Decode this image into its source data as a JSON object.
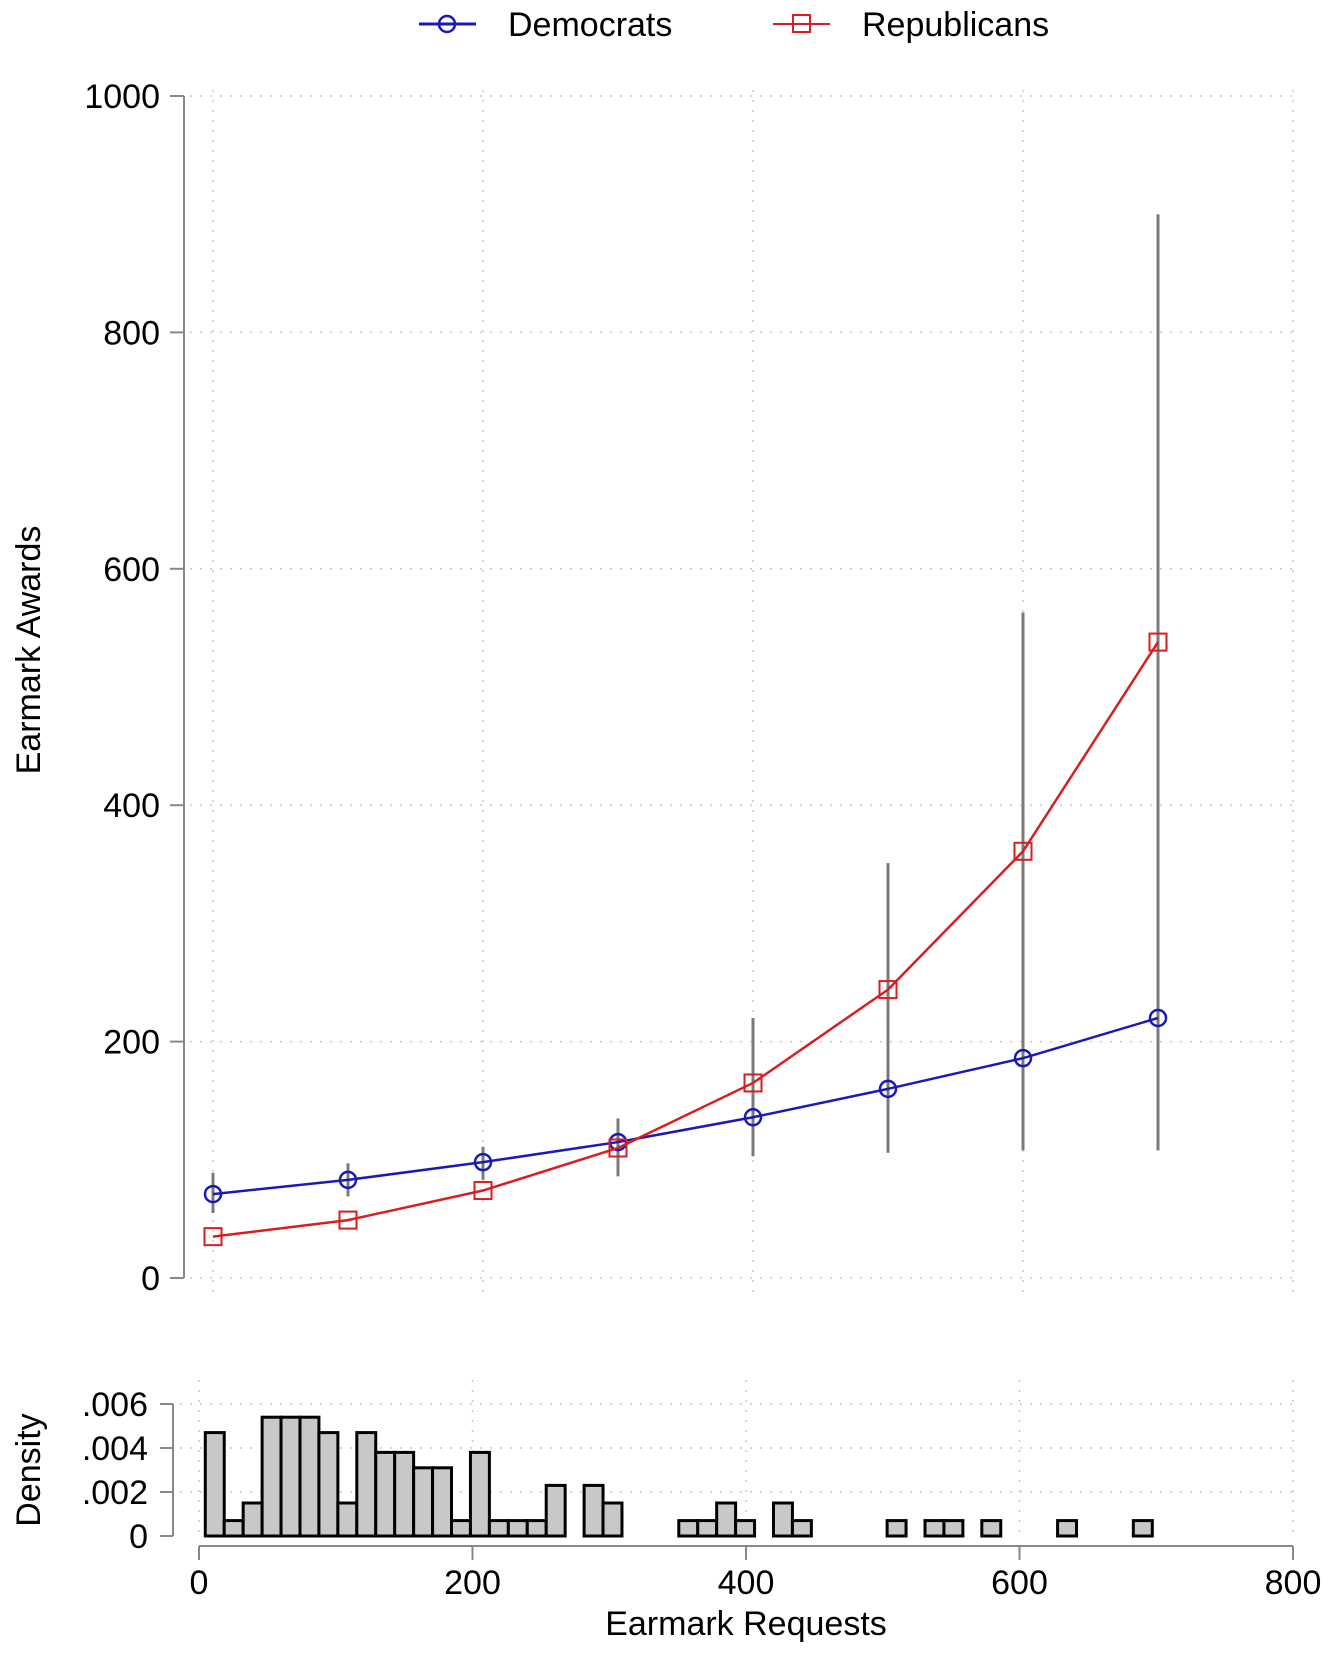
{
  "legend": {
    "items": [
      {
        "label": "Democrats",
        "color": "#1a1ab8",
        "marker": "circle"
      },
      {
        "label": "Republicans",
        "color": "#d81e1e",
        "marker": "square"
      }
    ]
  },
  "colors": {
    "democrats": "#1a1ab8",
    "republicans": "#d81e1e",
    "ci": "#7a7a7a",
    "ci_dark": "#444444",
    "hist_fill": "#c8c8c8",
    "hist_edge": "#000000",
    "grid": "#c8c8c8",
    "axis": "#888888"
  },
  "chart_data": [
    {
      "type": "line",
      "title": "",
      "xlabel": "Earmark Requests",
      "ylabel": "Earmark Awards",
      "xlim": [
        0,
        800
      ],
      "ylim": [
        0,
        1000
      ],
      "x_ticks": [
        0,
        200,
        400,
        600,
        800
      ],
      "y_ticks": [
        0,
        200,
        400,
        600,
        800,
        1000
      ],
      "y_tick_labels": [
        "0",
        "200",
        "400",
        "600",
        "800",
        "1000"
      ],
      "grid": true,
      "legend_position": "top",
      "x": [
        0,
        100,
        200,
        300,
        400,
        500,
        600,
        700
      ],
      "series": [
        {
          "name": "Democrats",
          "marker": "circle",
          "color": "#1a1ab8",
          "values": [
            71,
            83,
            98,
            115,
            136,
            160,
            186,
            220
          ]
        },
        {
          "name": "Republicans",
          "marker": "square",
          "color": "#d81e1e",
          "values": [
            35,
            49,
            74,
            110,
            165,
            244,
            361,
            538
          ]
        }
      ],
      "confidence_intervals": {
        "x": [
          0,
          100,
          200,
          300,
          400,
          500,
          600,
          700
        ],
        "lower": [
          55,
          69,
          83,
          86,
          103,
          106,
          108,
          108
        ],
        "upper": [
          89,
          97,
          111,
          135,
          220,
          351,
          563,
          900
        ]
      }
    },
    {
      "type": "bar",
      "title": "",
      "xlabel": "Earmark Requests",
      "ylabel": "Density",
      "xlim": [
        0,
        800
      ],
      "ylim": [
        0,
        0.006
      ],
      "x_ticks": [
        0,
        200,
        400,
        600,
        800
      ],
      "x_tick_labels": [
        "0",
        "200",
        "400",
        "600",
        "800"
      ],
      "y_ticks": [
        0,
        0.002,
        0.004,
        0.006
      ],
      "y_tick_labels": [
        "0",
        ".002",
        ".004",
        ".006"
      ],
      "grid": true,
      "bin_start": 4.6,
      "bin_width": 13.85,
      "bins": [
        {
          "left": 4.6,
          "density": 0.0047
        },
        {
          "left": 18.45,
          "density": 0.0007
        },
        {
          "left": 32.3,
          "density": 0.0015
        },
        {
          "left": 46.15,
          "density": 0.0054
        },
        {
          "left": 60.0,
          "density": 0.0054
        },
        {
          "left": 73.85,
          "density": 0.0054
        },
        {
          "left": 87.7,
          "density": 0.0047
        },
        {
          "left": 101.55,
          "density": 0.0015
        },
        {
          "left": 115.4,
          "density": 0.0047
        },
        {
          "left": 129.25,
          "density": 0.0038
        },
        {
          "left": 143.1,
          "density": 0.0038
        },
        {
          "left": 156.95,
          "density": 0.0031
        },
        {
          "left": 170.8,
          "density": 0.0031
        },
        {
          "left": 184.65,
          "density": 0.0007
        },
        {
          "left": 198.5,
          "density": 0.0038
        },
        {
          "left": 212.35,
          "density": 0.0007
        },
        {
          "left": 226.2,
          "density": 0.0007
        },
        {
          "left": 240.05,
          "density": 0.0007
        },
        {
          "left": 253.9,
          "density": 0.0023
        },
        {
          "left": 281.6,
          "density": 0.0023
        },
        {
          "left": 295.45,
          "density": 0.0015
        },
        {
          "left": 350.85,
          "density": 0.0007
        },
        {
          "left": 364.7,
          "density": 0.0007
        },
        {
          "left": 378.55,
          "density": 0.0015
        },
        {
          "left": 392.4,
          "density": 0.0007
        },
        {
          "left": 420.1,
          "density": 0.0015
        },
        {
          "left": 433.95,
          "density": 0.0007
        },
        {
          "left": 503.2,
          "density": 0.0007
        },
        {
          "left": 530.9,
          "density": 0.0007
        },
        {
          "left": 544.75,
          "density": 0.0007
        },
        {
          "left": 572.45,
          "density": 0.0007
        },
        {
          "left": 627.85,
          "density": 0.0007
        },
        {
          "left": 683.25,
          "density": 0.0007
        }
      ]
    }
  ]
}
